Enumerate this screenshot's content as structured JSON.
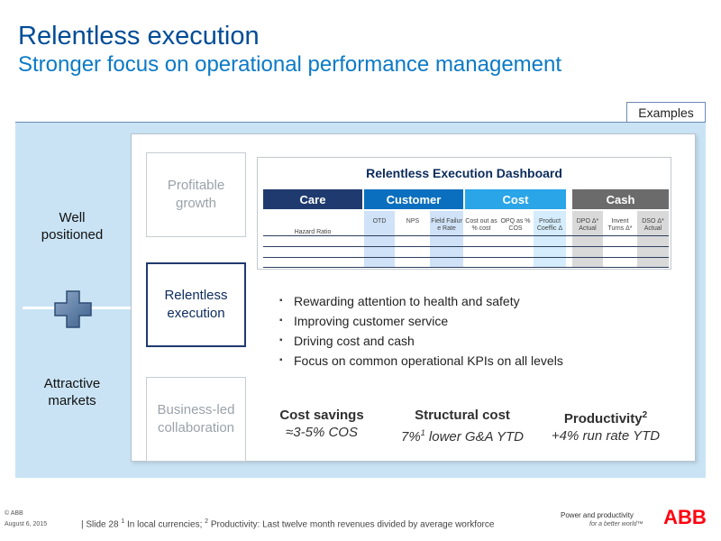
{
  "header": {
    "title": "Relentless execution",
    "subtitle": "Stronger focus on operational performance management"
  },
  "examples_label": "Examples",
  "left_labels": {
    "top": "Well positioned",
    "bottom": "Attractive markets"
  },
  "side_boxes": {
    "top": "Profitable growth",
    "middle": "Relentless execution",
    "bottom": "Business-led collaboration"
  },
  "dashboard": {
    "title": "Relentless Execution Dashboard",
    "categories": [
      {
        "label": "Care",
        "color": "#1f3a6e"
      },
      {
        "label": "Customer",
        "color": "#0b6fbf"
      },
      {
        "label": "Cost",
        "color": "#2aa5e8"
      },
      {
        "label": "Cash",
        "color": "#6b6b6b"
      }
    ],
    "columns": [
      {
        "label": "Hazard Ratio",
        "shade": "#ffffff"
      },
      {
        "label": "OTD",
        "shade": "#cfe2f7"
      },
      {
        "label": "NPS",
        "shade": "#ffffff"
      },
      {
        "label": "Field Failur e Rate",
        "shade": "#cfe2f7"
      },
      {
        "label": "Cost out as % cost",
        "shade": "#ffffff"
      },
      {
        "label": "OPQ as % COS",
        "shade": "#ffffff"
      },
      {
        "label": "Product Coeffic Δ",
        "shade": "#d4ecfb"
      },
      {
        "label": "DPO Δ* Actual",
        "shade": "#d9d9d9"
      },
      {
        "label": "Invent Turns Δ*",
        "shade": "#ffffff"
      },
      {
        "label": "DSO Δ* Actual",
        "shade": "#d9d9d9"
      }
    ]
  },
  "bullets": [
    "Rewarding attention to health and safety",
    "Improving customer service",
    "Driving cost and cash",
    "Focus on common operational KPIs on all levels"
  ],
  "metrics": [
    {
      "title": "Cost savings",
      "title_sup": "",
      "value": "≈3-5% COS",
      "value_sup": "",
      "value_rest": ""
    },
    {
      "title": "Structural cost",
      "title_sup": "",
      "value": "7%",
      "value_sup": "1",
      "value_rest": " lower G&A YTD"
    },
    {
      "title": "Productivity",
      "title_sup": "2",
      "value": "+4% run rate YTD",
      "value_sup": "",
      "value_rest": ""
    }
  ],
  "footer": {
    "copyright": "© ABB",
    "date": "August 6, 2015",
    "note_prefix": "| Slide 28  ",
    "sup1": "1",
    "note_mid": " In local currencies; ",
    "sup2": "2",
    "note_end": " Productivity: Last twelve month revenues divided by average workforce",
    "tagline_line1": "Power and productivity",
    "tagline_line2": "for a better world™",
    "logo_text": "ABB"
  },
  "colors": {
    "title": "#004c97",
    "subtitle": "#0b7ac6",
    "panel": "#c9e3f4",
    "abb_red": "#ff000f"
  },
  "icons": {
    "plus": "plus-cross-icon",
    "bullet": "square-bullet-icon"
  }
}
